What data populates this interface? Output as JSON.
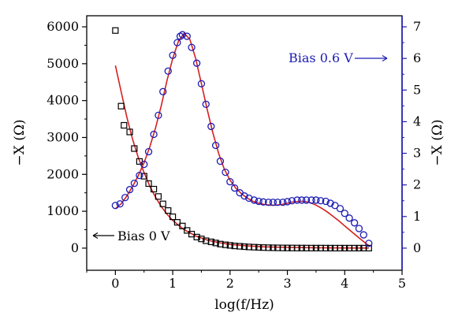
{
  "chart_data": {
    "type": "scatter",
    "xlabel": "log(f/Hz)",
    "ylabel_left": "−X (Ω)",
    "ylabel_right": "−X (Ω)",
    "xlim": [
      -0.5,
      5
    ],
    "ylim_left": [
      -600,
      6300
    ],
    "ylim_right": [
      -0.7,
      7.35
    ],
    "x_ticks": [
      "0",
      "1",
      "2",
      "3",
      "4",
      "5"
    ],
    "y_left_ticks": [
      "0",
      "1000",
      "2000",
      "3000",
      "4000",
      "5000",
      "6000"
    ],
    "y_right_ticks": [
      "0",
      "1",
      "2",
      "3",
      "4",
      "5",
      "6",
      "7"
    ],
    "grid": false,
    "colors": {
      "left_axis": "#000000",
      "right_axis": "#1c1cb4",
      "fit": "#d42020"
    },
    "annotations": {
      "left": "Bias 0 V",
      "right": "Bias 0.6 V"
    },
    "series": [
      {
        "axis": "left",
        "marker": "square",
        "color": "#000000",
        "x": [
          0.0,
          0.1,
          0.15,
          0.25,
          0.33,
          0.42,
          0.5,
          0.58,
          0.67,
          0.75,
          0.83,
          0.92,
          1.0,
          1.08,
          1.17,
          1.25,
          1.33,
          1.42,
          1.5,
          1.58,
          1.67,
          1.75,
          1.83,
          1.92,
          2.0,
          2.08,
          2.17,
          2.25,
          2.33,
          2.42,
          2.5,
          2.58,
          2.67,
          2.75,
          2.83,
          2.92,
          3.0,
          3.08,
          3.17,
          3.25,
          3.33,
          3.42,
          3.5,
          3.58,
          3.67,
          3.75,
          3.83,
          3.92,
          4.0,
          4.08,
          4.17,
          4.25,
          4.33,
          4.42
        ],
        "y": [
          5900,
          3850,
          3330,
          3150,
          2700,
          2350,
          1950,
          1750,
          1600,
          1400,
          1200,
          1020,
          850,
          700,
          600,
          480,
          380,
          300,
          250,
          200,
          170,
          140,
          110,
          90,
          75,
          60,
          50,
          40,
          32,
          26,
          20,
          16,
          12,
          10,
          8,
          6,
          5,
          4,
          3,
          2,
          2,
          1,
          1,
          1,
          1,
          0,
          0,
          0,
          0,
          0,
          0,
          0,
          0,
          0
        ]
      },
      {
        "axis": "right",
        "marker": "circle",
        "color": "#1c1cb4",
        "x": [
          0.0,
          0.08,
          0.17,
          0.25,
          0.33,
          0.42,
          0.5,
          0.58,
          0.67,
          0.75,
          0.83,
          0.92,
          1.0,
          1.08,
          1.13,
          1.17,
          1.25,
          1.33,
          1.42,
          1.5,
          1.58,
          1.67,
          1.75,
          1.83,
          1.92,
          2.0,
          2.08,
          2.17,
          2.25,
          2.33,
          2.42,
          2.5,
          2.58,
          2.67,
          2.75,
          2.83,
          2.92,
          3.0,
          3.08,
          3.17,
          3.25,
          3.33,
          3.42,
          3.5,
          3.58,
          3.67,
          3.75,
          3.83,
          3.92,
          4.0,
          4.08,
          4.17,
          4.25,
          4.33,
          4.42
        ],
        "y": [
          1.35,
          1.4,
          1.6,
          1.85,
          2.05,
          2.3,
          2.65,
          3.05,
          3.6,
          4.2,
          4.95,
          5.6,
          6.1,
          6.5,
          6.7,
          6.75,
          6.7,
          6.35,
          5.85,
          5.2,
          4.55,
          3.85,
          3.25,
          2.75,
          2.4,
          2.1,
          1.9,
          1.75,
          1.65,
          1.58,
          1.52,
          1.48,
          1.46,
          1.45,
          1.45,
          1.45,
          1.45,
          1.47,
          1.5,
          1.52,
          1.52,
          1.52,
          1.52,
          1.52,
          1.5,
          1.48,
          1.42,
          1.35,
          1.25,
          1.1,
          0.95,
          0.8,
          0.62,
          0.42,
          0.15
        ]
      },
      {
        "axis": "left",
        "kind": "fit-line",
        "color": "#d42020",
        "x": [
          0.0,
          0.1,
          0.2,
          0.3,
          0.4,
          0.5,
          0.6,
          0.7,
          0.8,
          0.9,
          1.0,
          1.2,
          1.4,
          1.6,
          1.8,
          2.0,
          2.3,
          2.6,
          3.0,
          3.5,
          4.0,
          4.42
        ],
        "y": [
          4950,
          4250,
          3550,
          2950,
          2450,
          2050,
          1680,
          1380,
          1130,
          920,
          750,
          500,
          330,
          220,
          150,
          100,
          60,
          35,
          20,
          10,
          5,
          3
        ]
      },
      {
        "axis": "right",
        "kind": "fit-line",
        "color": "#d42020",
        "x": [
          0.0,
          0.1,
          0.2,
          0.3,
          0.4,
          0.5,
          0.6,
          0.7,
          0.8,
          0.9,
          1.0,
          1.1,
          1.2,
          1.3,
          1.4,
          1.5,
          1.6,
          1.7,
          1.8,
          1.9,
          2.0,
          2.1,
          2.2,
          2.3,
          2.4,
          2.5,
          2.6,
          2.7,
          2.8,
          2.9,
          3.0,
          3.1,
          3.2,
          3.3,
          3.4,
          3.5,
          3.6,
          3.7,
          3.8,
          3.9,
          4.0,
          4.1,
          4.2,
          4.3,
          4.42
        ],
        "y": [
          1.25,
          1.4,
          1.65,
          1.95,
          2.3,
          2.7,
          3.2,
          3.8,
          4.5,
          5.3,
          6.0,
          6.55,
          6.8,
          6.6,
          6.0,
          5.2,
          4.4,
          3.65,
          3.0,
          2.5,
          2.15,
          1.9,
          1.72,
          1.58,
          1.48,
          1.42,
          1.38,
          1.36,
          1.36,
          1.38,
          1.42,
          1.46,
          1.48,
          1.48,
          1.44,
          1.36,
          1.26,
          1.14,
          1.0,
          0.86,
          0.7,
          0.55,
          0.4,
          0.25,
          0.08
        ]
      }
    ]
  }
}
